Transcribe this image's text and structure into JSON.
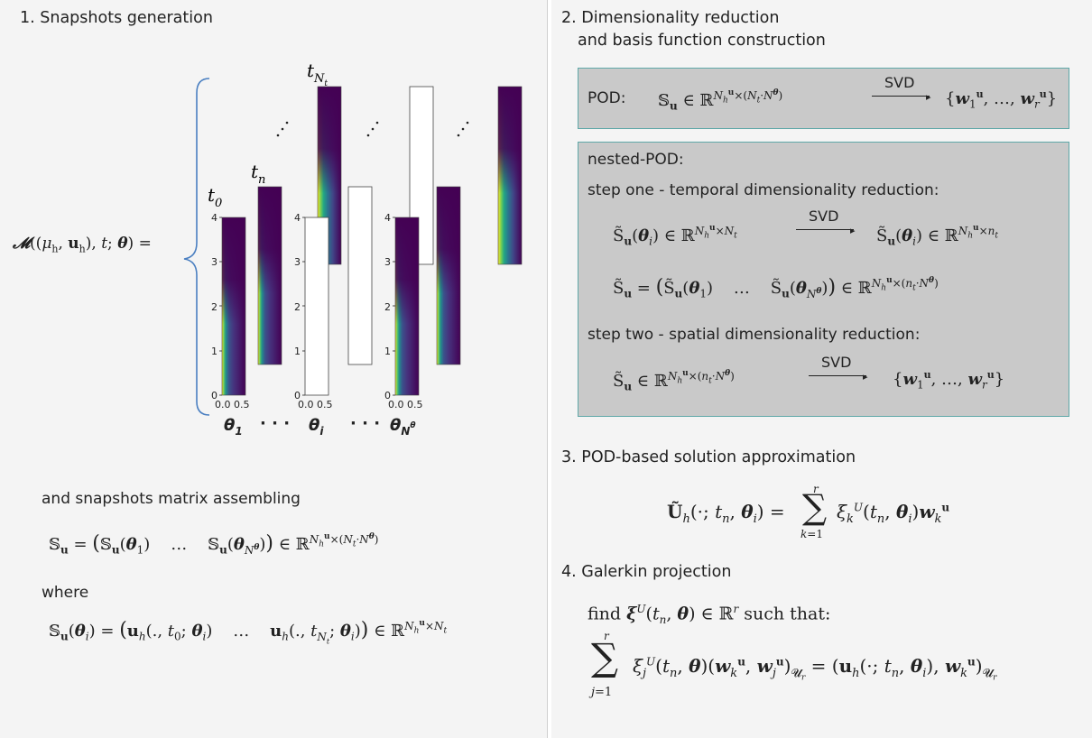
{
  "left": {
    "title": "1. Snapshots generation",
    "lhs_formula": "𝓜((μ_h, u_h), t; θ) =",
    "time_labels": {
      "t0": "t",
      "t0_sub": "0",
      "tn": "t",
      "tn_sub": "n",
      "tNt": "t",
      "tNt_sub": "N",
      "tNt_subsub": "t"
    },
    "yticks": [
      "4",
      "3",
      "2",
      "1",
      "0"
    ],
    "xticks": "0.0 0.5",
    "param_labels": [
      "θ",
      "···",
      "θ",
      "···",
      "θ"
    ],
    "param_subs": [
      "1",
      "",
      "i",
      "",
      "N"
    ],
    "param_subsup": "θ",
    "assembling_text": "and snapshots matrix assembling",
    "assembling_formula": "𝕊u = (𝕊u(θ1)   …   𝕊u(θNθ)) ∈ ℝ^(Nhu × (Nt·Nθ))",
    "where_text": "where",
    "where_formula": "𝕊u(θi) = (uh(., t0; θi)   …   uh(., tNt; θi)) ∈ ℝ^(Nhu × Nt)"
  },
  "right": {
    "title_line1": "2. Dimensionality reduction",
    "title_line2": "and basis function construction",
    "pod_label": "POD:",
    "svd_label": "SVD",
    "pod_formula": "𝕊u ∈ ℝ^(Nhu × (Nt·Nθ)) → {w1u, …, wru}",
    "nested_label": "nested-POD:",
    "step_one": "step one - temporal dimensionality reduction:",
    "step_one_formula": "S̃u(θi) ∈ ℝ^(Nhu × Nt) → S̃u(θi) ∈ ℝ^(Nhu × nt)",
    "assembled_formula": "S̃u = (S̃u(θ1)  …  S̃u(θNθ)) ∈ ℝ^(Nhu × (nt·Nθ))",
    "step_two": "step two - spatial dimensionality reduction:",
    "step_two_formula": "S̃u ∈ ℝ^(Nhu × (nt·Nθ)) → {w1u, …, wru}",
    "approx_title": "3. POD-based solution approximation",
    "approx_formula": "Ũh(·; tn, θi) = Σ_{k=1}^{r} ξk^U(tn, θi) wk^u",
    "galerkin_title": "4. Galerkin projection",
    "find_text": "find ξ^U(tn, θ) ∈ ℝ^r such that:",
    "galerkin_formula": "Σ_{j=1}^{r} ξj^U(tn, θ)(wk^u, wj^u)_{Ur} = (uh(·; tn, θi), wk^u)_{Ur}"
  },
  "colors": {
    "accent_border": "#5fa8a8",
    "box_fill": "#c9c9c9",
    "brace": "#4a7fc1",
    "viridis_dark": "#440154"
  }
}
